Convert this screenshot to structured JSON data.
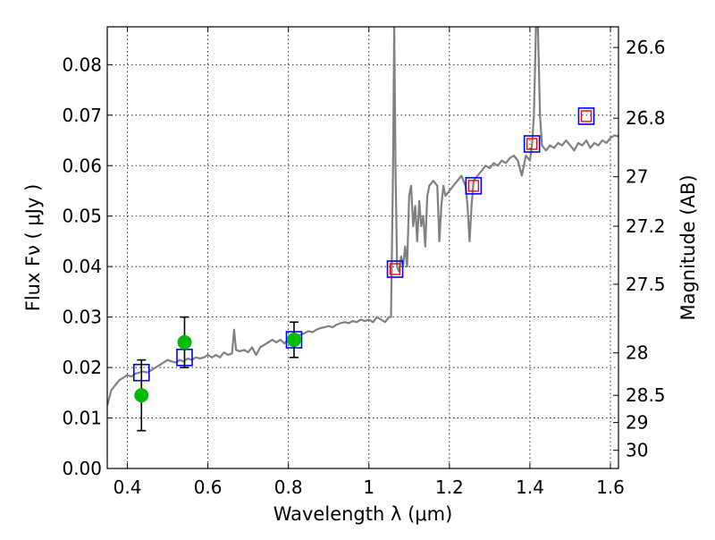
{
  "chart_data": {
    "type": "line",
    "title": "",
    "xlabel": "Wavelength  λ (μm)",
    "ylabel": "Flux  Fν  ( μJy )",
    "ylabel_right": "Magnitude (AB)",
    "xlim": [
      0.35,
      1.62
    ],
    "ylim": [
      0.0,
      0.0875
    ],
    "grid": true,
    "x_ticks": [
      {
        "value": 0.4,
        "label": "0.4"
      },
      {
        "value": 0.6,
        "label": "0.6"
      },
      {
        "value": 0.8,
        "label": "0.8"
      },
      {
        "value": 1.0,
        "label": "1"
      },
      {
        "value": 1.2,
        "label": "1.2"
      },
      {
        "value": 1.4,
        "label": "1.4"
      },
      {
        "value": 1.6,
        "label": "1.6"
      }
    ],
    "y_ticks": [
      {
        "value": 0.0,
        "label": "0.00"
      },
      {
        "value": 0.01,
        "label": "0.01"
      },
      {
        "value": 0.02,
        "label": "0.02"
      },
      {
        "value": 0.03,
        "label": "0.03"
      },
      {
        "value": 0.04,
        "label": "0.04"
      },
      {
        "value": 0.05,
        "label": "0.05"
      },
      {
        "value": 0.06,
        "label": "0.06"
      },
      {
        "value": 0.07,
        "label": "0.07"
      },
      {
        "value": 0.08,
        "label": "0.08"
      }
    ],
    "right_ticks": [
      {
        "flux": 0.0834,
        "label": "26.6"
      },
      {
        "flux": 0.0694,
        "label": "26.8"
      },
      {
        "flux": 0.0578,
        "label": "27"
      },
      {
        "flux": 0.048,
        "label": "27.2"
      },
      {
        "flux": 0.0365,
        "label": "27.5"
      },
      {
        "flux": 0.0229,
        "label": "28"
      },
      {
        "flux": 0.0145,
        "label": "28.5"
      },
      {
        "flux": 0.0091,
        "label": "29"
      },
      {
        "flux": 0.0036,
        "label": "30"
      }
    ],
    "series": [
      {
        "kind": "spectrum",
        "color": "#808080",
        "x": [
          0.35,
          0.355,
          0.36,
          0.37,
          0.38,
          0.39,
          0.4,
          0.41,
          0.42,
          0.43,
          0.44,
          0.45,
          0.46,
          0.47,
          0.48,
          0.49,
          0.5,
          0.51,
          0.52,
          0.53,
          0.54,
          0.55,
          0.56,
          0.57,
          0.58,
          0.59,
          0.6,
          0.61,
          0.62,
          0.63,
          0.64,
          0.65,
          0.66,
          0.665,
          0.67,
          0.68,
          0.69,
          0.7,
          0.71,
          0.72,
          0.73,
          0.74,
          0.75,
          0.76,
          0.77,
          0.78,
          0.79,
          0.8,
          0.81,
          0.82,
          0.83,
          0.84,
          0.85,
          0.86,
          0.87,
          0.88,
          0.89,
          0.9,
          0.91,
          0.92,
          0.93,
          0.94,
          0.95,
          0.96,
          0.97,
          0.98,
          0.99,
          1.0,
          1.01,
          1.02,
          1.03,
          1.04,
          1.05,
          1.055,
          1.06,
          1.063,
          1.066,
          1.07,
          1.075,
          1.08,
          1.085,
          1.09,
          1.095,
          1.1,
          1.105,
          1.11,
          1.115,
          1.12,
          1.125,
          1.13,
          1.135,
          1.14,
          1.145,
          1.15,
          1.16,
          1.17,
          1.175,
          1.18,
          1.185,
          1.19,
          1.2,
          1.21,
          1.22,
          1.23,
          1.24,
          1.245,
          1.25,
          1.255,
          1.26,
          1.27,
          1.28,
          1.29,
          1.3,
          1.31,
          1.32,
          1.33,
          1.34,
          1.35,
          1.36,
          1.37,
          1.38,
          1.39,
          1.4,
          1.405,
          1.41,
          1.415,
          1.42,
          1.425,
          1.43,
          1.44,
          1.45,
          1.46,
          1.47,
          1.48,
          1.49,
          1.5,
          1.51,
          1.52,
          1.53,
          1.54,
          1.55,
          1.56,
          1.57,
          1.58,
          1.59,
          1.6,
          1.61,
          1.62
        ],
        "y": [
          0.0125,
          0.014,
          0.0155,
          0.0165,
          0.0175,
          0.018,
          0.0185,
          0.0182,
          0.0188,
          0.019,
          0.0192,
          0.019,
          0.0195,
          0.02,
          0.0205,
          0.021,
          0.0215,
          0.0212,
          0.021,
          0.0215,
          0.0212,
          0.0218,
          0.0215,
          0.022,
          0.0218,
          0.022,
          0.0225,
          0.022,
          0.0225,
          0.022,
          0.023,
          0.0225,
          0.0228,
          0.0275,
          0.0235,
          0.0232,
          0.0235,
          0.023,
          0.024,
          0.0225,
          0.024,
          0.0245,
          0.025,
          0.0255,
          0.025,
          0.0255,
          0.0248,
          0.0255,
          0.026,
          0.0262,
          0.0265,
          0.0268,
          0.0272,
          0.027,
          0.0275,
          0.0278,
          0.028,
          0.0282,
          0.028,
          0.0285,
          0.0288,
          0.029,
          0.0288,
          0.0292,
          0.029,
          0.0295,
          0.0292,
          0.0295,
          0.029,
          0.03,
          0.0295,
          0.029,
          0.03,
          0.03,
          0.06,
          0.0875,
          0.06,
          0.04,
          0.039,
          0.042,
          0.04,
          0.044,
          0.04,
          0.054,
          0.056,
          0.048,
          0.052,
          0.045,
          0.053,
          0.048,
          0.05,
          0.044,
          0.054,
          0.056,
          0.057,
          0.056,
          0.045,
          0.052,
          0.056,
          0.054,
          0.055,
          0.056,
          0.057,
          0.058,
          0.056,
          0.052,
          0.045,
          0.052,
          0.057,
          0.058,
          0.059,
          0.06,
          0.0595,
          0.0605,
          0.06,
          0.061,
          0.0605,
          0.0615,
          0.062,
          0.061,
          0.058,
          0.062,
          0.061,
          0.064,
          0.07,
          0.0875,
          0.0875,
          0.07,
          0.064,
          0.063,
          0.064,
          0.0635,
          0.0645,
          0.064,
          0.065,
          0.064,
          0.063,
          0.0645,
          0.064,
          0.065,
          0.0635,
          0.0645,
          0.064,
          0.065,
          0.0645,
          0.0655,
          0.066,
          0.0658
        ]
      },
      {
        "kind": "model_points",
        "marker": "square",
        "color": "#0000ff",
        "points": [
          {
            "x": 0.435,
            "y": 0.019
          },
          {
            "x": 0.542,
            "y": 0.022
          },
          {
            "x": 0.814,
            "y": 0.0255
          },
          {
            "x": 1.065,
            "y": 0.0395
          },
          {
            "x": 1.26,
            "y": 0.056
          },
          {
            "x": 1.405,
            "y": 0.0643
          },
          {
            "x": 1.54,
            "y": 0.0698
          }
        ]
      },
      {
        "kind": "inner_points",
        "marker": "square",
        "color": "#ff0000",
        "points": [
          {
            "x": 1.065,
            "y": 0.0395
          },
          {
            "x": 1.26,
            "y": 0.056
          },
          {
            "x": 1.405,
            "y": 0.0643
          },
          {
            "x": 1.54,
            "y": 0.0698
          }
        ]
      },
      {
        "kind": "observed_points",
        "marker": "circle",
        "color": "#00bb00",
        "points": [
          {
            "x": 0.435,
            "y": 0.0145,
            "ylow": 0.0075,
            "yhigh": 0.0215
          },
          {
            "x": 0.542,
            "y": 0.025,
            "ylow": 0.02,
            "yhigh": 0.03
          },
          {
            "x": 0.814,
            "y": 0.0255,
            "ylow": 0.022,
            "yhigh": 0.029
          }
        ]
      }
    ]
  }
}
